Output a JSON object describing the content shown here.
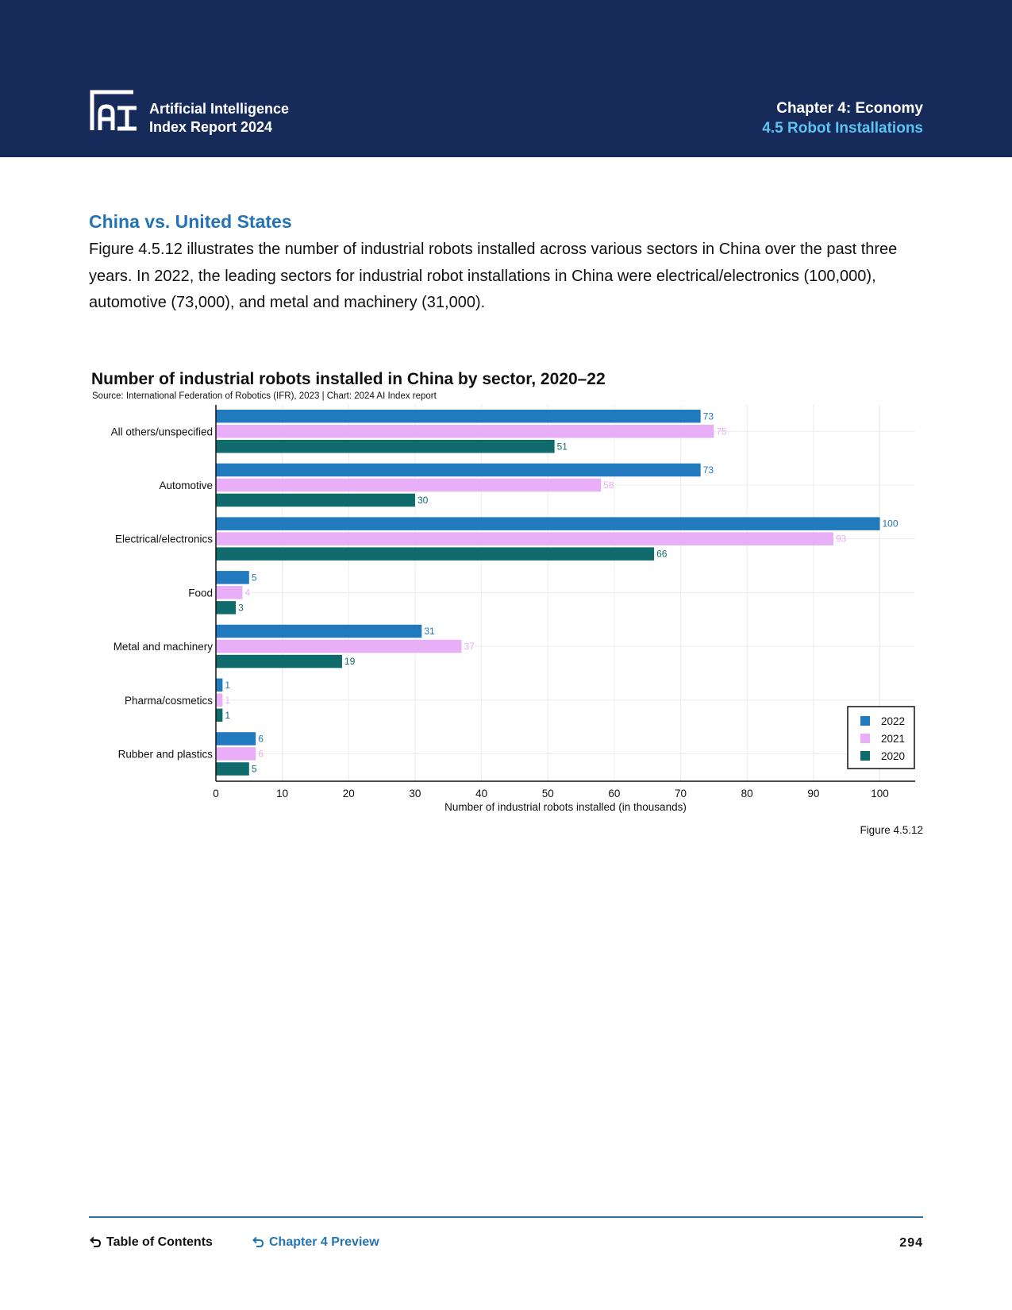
{
  "header": {
    "brand_line1": "Artificial Intelligence",
    "brand_line2": "Index Report 2024",
    "chapter": "Chapter 4: Economy",
    "section": "4.5 Robot Installations",
    "logo_icon": "ai-index-logo-icon"
  },
  "section_title": "China vs. United States",
  "body_text": "Figure 4.5.12 illustrates the number of industrial robots installed across various sectors in China over the past three years. In 2022, the leading sectors for industrial robot installations in China were electrical/electronics (100,000), automotive (73,000), and metal and machinery (31,000).",
  "chart_data": {
    "type": "bar",
    "orientation": "horizontal",
    "title": "Number of industrial robots installed in China by sector, 2020–22",
    "subtitle": "Source: International Federation of Robotics (IFR), 2023 | Chart: 2024 AI Index report",
    "xlabel": "Number of industrial robots installed (in thousands)",
    "ylabel": "",
    "xlim": [
      0,
      105
    ],
    "xticks": [
      0,
      10,
      20,
      30,
      40,
      50,
      60,
      70,
      80,
      90,
      100
    ],
    "grid": true,
    "legend": "bottom-right",
    "categories": [
      "All others/unspecified",
      "Automotive",
      "Electrical/electronics",
      "Food",
      "Metal and machinery",
      "Pharma/cosmetics",
      "Rubber and plastics"
    ],
    "series": [
      {
        "name": "2022",
        "color": "#2179be",
        "values": [
          73,
          73,
          100,
          5,
          31,
          1,
          6
        ]
      },
      {
        "name": "2021",
        "color": "#e8aef8",
        "values": [
          75,
          58,
          93,
          4,
          37,
          1,
          6
        ]
      },
      {
        "name": "2020",
        "color": "#0f6b6c",
        "values": [
          51,
          30,
          66,
          3,
          19,
          1,
          5
        ]
      }
    ]
  },
  "figure_label": "Figure 4.5.12",
  "footer": {
    "toc": "Table of Contents",
    "chapter_preview": "Chapter 4 Preview",
    "page_number": "294"
  }
}
